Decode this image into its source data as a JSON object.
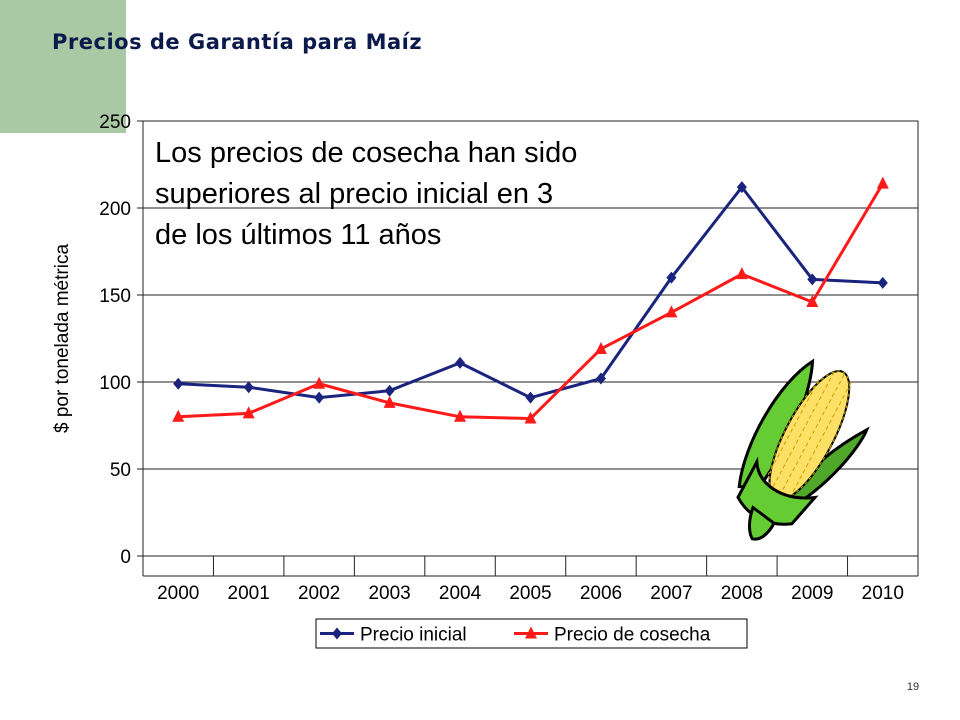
{
  "title": "Precios de Garantía para Maíz",
  "page_number": "19",
  "chart_data": {
    "type": "line",
    "ylabel": "$ por tonelada métrica",
    "xlabel": "",
    "ylim": [
      0,
      250
    ],
    "yticks": [
      0,
      50,
      100,
      150,
      200,
      250
    ],
    "grid": true,
    "legend": "bottom",
    "categories": [
      "2000",
      "2001",
      "2002",
      "2003",
      "2004",
      "2005",
      "2006",
      "2007",
      "2008",
      "2009",
      "2010"
    ],
    "series": [
      {
        "name": "Precio inicial",
        "color": "#1a237e",
        "marker": "diamond",
        "values": [
          99,
          97,
          91,
          95,
          111,
          91,
          102,
          160,
          212,
          159,
          157
        ]
      },
      {
        "name": "Precio de cosecha",
        "color": "#ff1a1a",
        "marker": "triangle",
        "values": [
          80,
          82,
          99,
          88,
          80,
          79,
          119,
          140,
          162,
          146,
          214
        ]
      }
    ],
    "annotation": [
      "Los precios de cosecha han sido",
      "superiores al precio inicial en 3",
      "de los últimos 11 años"
    ]
  }
}
